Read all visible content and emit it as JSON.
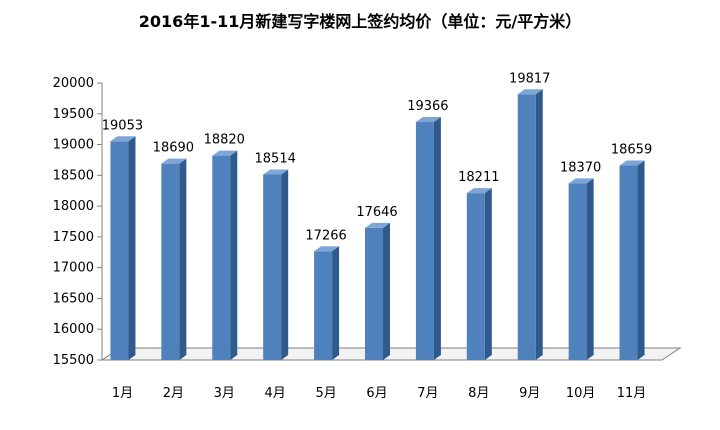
{
  "chart_data": {
    "type": "bar",
    "title": "2016年1-11月新建写字楼网上签约均价（单位：元/平方米）",
    "categories": [
      "1月",
      "2月",
      "3月",
      "4月",
      "5月",
      "6月",
      "7月",
      "8月",
      "9月",
      "10月",
      "11月"
    ],
    "values": [
      19053,
      18690,
      18820,
      18514,
      17266,
      17646,
      19366,
      18211,
      19817,
      18370,
      18659
    ],
    "xlabel": "",
    "ylabel": "",
    "ylim": [
      15500,
      20000
    ],
    "yticks": [
      15500,
      16000,
      16500,
      17000,
      17500,
      18000,
      18500,
      19000,
      19500,
      20000
    ],
    "grid": false,
    "legend": "none",
    "bar_color": "#4F81BD",
    "bar_side_color": "#2E5A8C",
    "bar_top_color": "#7FA5D6"
  }
}
